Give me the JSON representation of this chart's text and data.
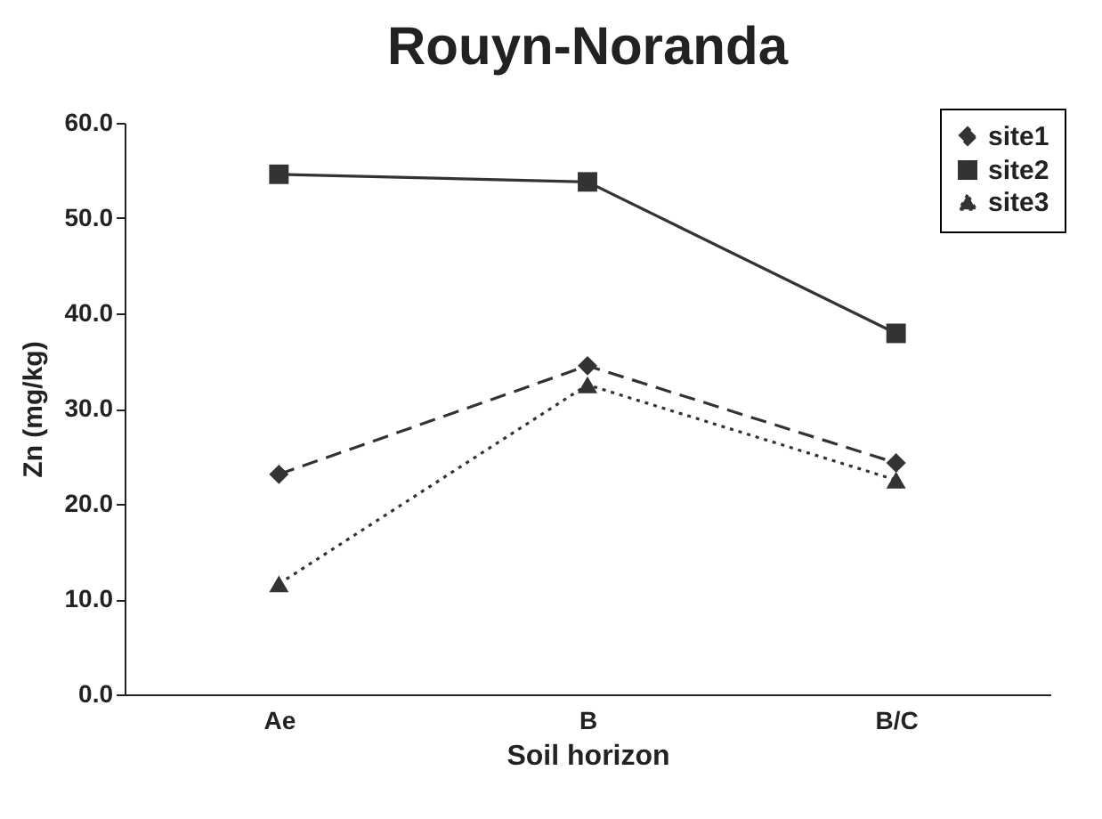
{
  "chart_data": {
    "type": "line",
    "title": "Rouyn-Noranda",
    "xlabel": "Soil horizon",
    "ylabel": "Zn (mg/kg)",
    "categories": [
      "Ae",
      "B",
      "B/C"
    ],
    "series": [
      {
        "name": "site1",
        "color": "#333333",
        "values": [
          23.1,
          34.5,
          24.3
        ],
        "marker": "diamond",
        "line_style": "dashed"
      },
      {
        "name": "site2",
        "color": "#333333",
        "values": [
          54.6,
          53.8,
          37.9
        ],
        "marker": "square",
        "line_style": "solid"
      },
      {
        "name": "site3",
        "color": "#333333",
        "values": [
          11.6,
          32.5,
          22.5
        ],
        "marker": "triangle",
        "line_style": "dotted"
      }
    ],
    "ylim": [
      0,
      60
    ],
    "yticks": [
      {
        "value": 0,
        "label": "0.0"
      },
      {
        "value": 10,
        "label": "10.0"
      },
      {
        "value": 20,
        "label": "20.0"
      },
      {
        "value": 30,
        "label": "30.0"
      },
      {
        "value": 40,
        "label": "40.0"
      },
      {
        "value": 50,
        "label": "50.0"
      },
      {
        "value": 60,
        "label": "60.0"
      }
    ],
    "grid": false,
    "legend": "top right"
  }
}
